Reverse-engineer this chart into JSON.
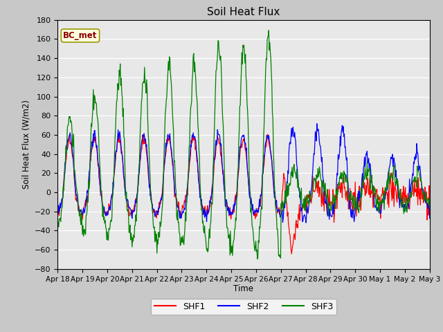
{
  "title": "Soil Heat Flux",
  "ylabel": "Soil Heat Flux (W/m2)",
  "xlabel": "Time",
  "ylim": [
    -80,
    180
  ],
  "annotation": "BC_met",
  "legend": [
    "SHF1",
    "SHF2",
    "SHF3"
  ],
  "colors": [
    "red",
    "blue",
    "green"
  ],
  "tick_labels": [
    "Apr 18",
    "Apr 19",
    "Apr 20",
    "Apr 21",
    "Apr 22",
    "Apr 23",
    "Apr 24",
    "Apr 25",
    "Apr 26",
    "Apr 27",
    "Apr 28",
    "Apr 29",
    "Apr 30",
    "May 1",
    "May 2",
    "May 3"
  ],
  "yticks": [
    -80,
    -60,
    -40,
    -20,
    0,
    20,
    40,
    60,
    80,
    100,
    120,
    140,
    160,
    180
  ],
  "fig_facecolor": "#c8c8c8",
  "ax_facecolor": "#e8e8e8",
  "grid_color": "white"
}
